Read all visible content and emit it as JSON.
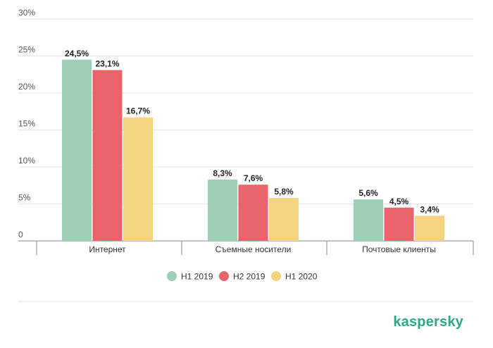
{
  "chart_data": {
    "type": "bar",
    "categories": [
      "Интернет",
      "Съемные носители",
      "Почтовые клиенты"
    ],
    "series": [
      {
        "name": "H1 2019",
        "color": "#9ccfb6",
        "values": [
          24.5,
          8.3,
          5.6
        ],
        "labels": [
          "24,5%",
          "8,3%",
          "5,6%"
        ]
      },
      {
        "name": "H2 2019",
        "color": "#e8636a",
        "values": [
          23.1,
          7.6,
          4.5
        ],
        "labels": [
          "23,1%",
          "7,6%",
          "4,5%"
        ]
      },
      {
        "name": "H1 2020",
        "color": "#f6d37e",
        "values": [
          16.7,
          5.8,
          3.4
        ],
        "labels": [
          "16,7%",
          "5,8%",
          "3,4%"
        ]
      }
    ],
    "y_ticks": [
      {
        "value": 0,
        "label": "0"
      },
      {
        "value": 5,
        "label": "5%"
      },
      {
        "value": 10,
        "label": "10%"
      },
      {
        "value": 15,
        "label": "15%"
      },
      {
        "value": 20,
        "label": "20%"
      },
      {
        "value": 25,
        "label": "25%"
      },
      {
        "value": 30,
        "label": "30%"
      }
    ],
    "ylim": [
      0,
      30
    ],
    "grid": true,
    "legend_position": "bottom-center"
  },
  "brand": {
    "logo_text": "kaspersky",
    "color": "#2ea583"
  }
}
